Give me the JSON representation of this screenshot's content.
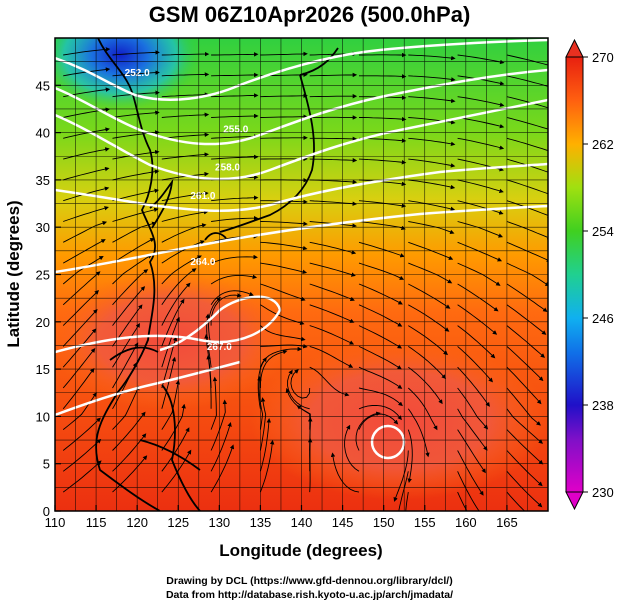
{
  "title": "GSM 06Z10Apr2026 (500.0hPa)",
  "credits": {
    "line1": "Drawing by DCL (https://www.gfd-dennou.org/library/dcl/)",
    "line2": "Data from http://database.rish.kyoto-u.ac.jp/arch/jmadata/"
  },
  "chart_data": {
    "type": "heatmap",
    "title": "GSM 06Z10Apr2026 (500.0hPa)",
    "xlabel": "Longitude (degrees)",
    "ylabel": "Latitude  (degrees)",
    "xlim": [
      110,
      170
    ],
    "ylim": [
      0,
      50
    ],
    "x_ticks": [
      110,
      115,
      120,
      125,
      130,
      135,
      140,
      145,
      150,
      155,
      160,
      165
    ],
    "y_ticks": [
      0,
      5,
      10,
      15,
      20,
      25,
      30,
      35,
      40,
      45
    ],
    "grid": true,
    "colorbar": {
      "min": 230,
      "max": 270,
      "ticks": [
        230,
        238,
        246,
        254,
        262,
        270
      ],
      "colors": [
        "#e000c8",
        "#2010c8",
        "#10a0f0",
        "#20d080",
        "#40d020",
        "#c0e010",
        "#ffa000",
        "#ff5010",
        "#e82010"
      ]
    },
    "contour_labels": [
      {
        "text": "252.0",
        "lon": 120,
        "lat": 46
      },
      {
        "text": "255.0",
        "lon": 132,
        "lat": 40
      },
      {
        "text": "258.0",
        "lon": 131,
        "lat": 36
      },
      {
        "text": "261.0",
        "lon": 128,
        "lat": 33
      },
      {
        "text": "264.0",
        "lon": 128,
        "lat": 26
      },
      {
        "text": "267.0",
        "lon": 130,
        "lat": 17
      }
    ],
    "fields": {
      "temperature": "500hPa temperature (K)",
      "streamlines": "500hPa wind"
    }
  }
}
